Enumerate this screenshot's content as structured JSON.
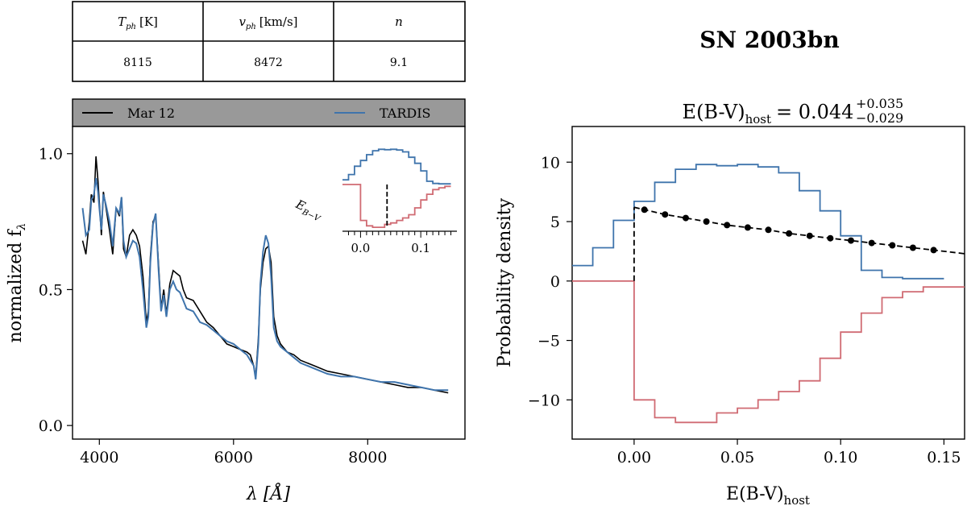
{
  "params_table": {
    "headers": [
      "T",
      "v",
      "n"
    ],
    "header_subscripts": [
      "ph",
      "ph",
      ""
    ],
    "header_units": [
      "[K]",
      "[km/s]",
      ""
    ],
    "values": [
      "8115",
      "8472",
      "9.1"
    ]
  },
  "chart_data": [
    {
      "type": "line",
      "name": "spectrum",
      "xlabel": "λ [Å]",
      "ylabel": "normalized f",
      "ylabel_subscript": "λ",
      "xlim": [
        3600,
        9450
      ],
      "ylim": [
        -0.05,
        1.1
      ],
      "xticks": [
        4000,
        6000,
        8000
      ],
      "xtick_labels": [
        "4000",
        "6000",
        "8000"
      ],
      "yticks": [
        0.0,
        0.5,
        1.0
      ],
      "ytick_labels": [
        "0.0",
        "0.5",
        "1.0"
      ],
      "legend": {
        "placement": "top-banner",
        "entries": [
          "Mar 12",
          "TARDIS"
        ]
      },
      "series": [
        {
          "name": "Mar 12",
          "color": "#000000",
          "x": [
            3750,
            3800,
            3850,
            3880,
            3920,
            3950,
            3980,
            4000,
            4030,
            4060,
            4100,
            4150,
            4200,
            4250,
            4300,
            4330,
            4360,
            4400,
            4450,
            4500,
            4550,
            4600,
            4650,
            4700,
            4730,
            4760,
            4800,
            4840,
            4880,
            4920,
            4960,
            5000,
            5050,
            5100,
            5150,
            5200,
            5250,
            5300,
            5400,
            5500,
            5600,
            5700,
            5800,
            5900,
            6000,
            6100,
            6200,
            6250,
            6300,
            6330,
            6370,
            6400,
            6440,
            6480,
            6520,
            6560,
            6600,
            6650,
            6700,
            6800,
            6900,
            7000,
            7200,
            7400,
            7600,
            7800,
            8000,
            8200,
            8400,
            8600,
            8800,
            9000,
            9200
          ],
          "y": [
            0.68,
            0.63,
            0.75,
            0.85,
            0.82,
            0.99,
            0.9,
            0.82,
            0.7,
            0.86,
            0.8,
            0.72,
            0.63,
            0.8,
            0.77,
            0.84,
            0.65,
            0.62,
            0.7,
            0.72,
            0.7,
            0.66,
            0.55,
            0.38,
            0.42,
            0.62,
            0.75,
            0.77,
            0.6,
            0.43,
            0.5,
            0.41,
            0.52,
            0.57,
            0.56,
            0.55,
            0.5,
            0.47,
            0.46,
            0.42,
            0.38,
            0.36,
            0.33,
            0.3,
            0.29,
            0.28,
            0.27,
            0.26,
            0.22,
            0.18,
            0.32,
            0.5,
            0.6,
            0.65,
            0.66,
            0.6,
            0.4,
            0.33,
            0.3,
            0.27,
            0.26,
            0.24,
            0.22,
            0.2,
            0.19,
            0.18,
            0.17,
            0.16,
            0.15,
            0.14,
            0.14,
            0.13,
            0.12
          ]
        },
        {
          "name": "TARDIS",
          "color": "#3f74ac",
          "x": [
            3750,
            3800,
            3850,
            3880,
            3920,
            3950,
            3980,
            4000,
            4030,
            4060,
            4100,
            4150,
            4200,
            4250,
            4300,
            4330,
            4360,
            4400,
            4450,
            4500,
            4550,
            4600,
            4650,
            4700,
            4730,
            4760,
            4800,
            4840,
            4880,
            4920,
            4960,
            5000,
            5050,
            5100,
            5150,
            5200,
            5250,
            5300,
            5400,
            5500,
            5600,
            5700,
            5800,
            5900,
            6000,
            6100,
            6200,
            6250,
            6300,
            6330,
            6370,
            6400,
            6440,
            6480,
            6520,
            6560,
            6600,
            6650,
            6700,
            6800,
            6900,
            7000,
            7200,
            7400,
            7600,
            7800,
            8000,
            8200,
            8400,
            8600,
            8800,
            9000,
            9200
          ],
          "y": [
            0.8,
            0.7,
            0.72,
            0.83,
            0.85,
            0.91,
            0.86,
            0.8,
            0.72,
            0.85,
            0.81,
            0.75,
            0.66,
            0.8,
            0.78,
            0.84,
            0.68,
            0.62,
            0.65,
            0.68,
            0.67,
            0.62,
            0.5,
            0.36,
            0.4,
            0.6,
            0.74,
            0.78,
            0.58,
            0.42,
            0.48,
            0.4,
            0.5,
            0.53,
            0.5,
            0.49,
            0.46,
            0.43,
            0.42,
            0.38,
            0.37,
            0.35,
            0.33,
            0.31,
            0.3,
            0.28,
            0.26,
            0.24,
            0.22,
            0.17,
            0.3,
            0.52,
            0.64,
            0.7,
            0.67,
            0.55,
            0.36,
            0.31,
            0.29,
            0.27,
            0.25,
            0.23,
            0.21,
            0.19,
            0.18,
            0.18,
            0.17,
            0.16,
            0.16,
            0.15,
            0.14,
            0.13,
            0.13
          ]
        }
      ]
    },
    {
      "type": "line",
      "name": "inset",
      "label": "E",
      "label_subscript": "B−V",
      "xlim": [
        -0.03,
        0.16
      ],
      "xticks": [
        0.0,
        0.1
      ],
      "xtick_labels": [
        "0.0",
        "0.1"
      ],
      "bin_edges": [
        -0.03,
        -0.02,
        -0.01,
        0.0,
        0.01,
        0.02,
        0.03,
        0.04,
        0.05,
        0.06,
        0.07,
        0.08,
        0.09,
        0.1,
        0.11,
        0.12,
        0.13,
        0.14,
        0.15
      ],
      "upper_values": [
        1.3,
        2.8,
        5.1,
        6.7,
        8.3,
        9.4,
        9.8,
        9.7,
        9.8,
        9.6,
        9.1,
        7.6,
        5.9,
        3.8,
        0.9,
        0.3,
        0.2,
        0.2
      ],
      "lower_values": [
        0,
        0,
        0,
        -10.0,
        -11.5,
        -11.9,
        -11.9,
        -11.1,
        -10.7,
        -10.0,
        -9.3,
        -8.4,
        -6.5,
        -4.3,
        -2.7,
        -1.4,
        -0.9,
        -0.5
      ],
      "marker_x": 0.044,
      "colors": {
        "upper": "#3f74ac",
        "lower": "#d06b73"
      }
    },
    {
      "type": "line",
      "name": "posterior",
      "title": "SN 2003bn",
      "subtitle_lhs": "E(B-V)",
      "subtitle_lhs_sub": "host",
      "subtitle_value": "= 0.044",
      "subtitle_plus": "+0.035",
      "subtitle_minus": "−0.029",
      "xlabel": "E(B-V)",
      "xlabel_subscript": "host",
      "ylabel": "Probability density",
      "xlim": [
        -0.03,
        0.16
      ],
      "ylim": [
        -13.3,
        13.0
      ],
      "xticks": [
        0.0,
        0.05,
        0.1,
        0.15
      ],
      "xtick_labels": [
        "0.00",
        "0.05",
        "0.10",
        "0.15"
      ],
      "yticks": [
        -10,
        -5,
        0,
        5,
        10
      ],
      "ytick_labels": [
        "−10",
        "−5",
        "0",
        "5",
        "10"
      ],
      "bin_edges": [
        -0.03,
        -0.02,
        -0.01,
        0.0,
        0.01,
        0.02,
        0.03,
        0.04,
        0.05,
        0.06,
        0.07,
        0.08,
        0.09,
        0.1,
        0.11,
        0.12,
        0.13,
        0.14,
        0.15
      ],
      "upper_values": [
        1.3,
        2.8,
        5.1,
        6.7,
        8.3,
        9.4,
        9.8,
        9.7,
        9.8,
        9.6,
        9.1,
        7.6,
        5.9,
        3.8,
        0.9,
        0.3,
        0.2,
        0.2
      ],
      "lower_values": [
        0,
        0,
        0,
        -10.0,
        -11.5,
        -11.9,
        -11.9,
        -11.1,
        -10.7,
        -10.0,
        -9.3,
        -8.4,
        -6.5,
        -4.3,
        -2.7,
        -1.4,
        -0.9,
        -0.5
      ],
      "prior_curve": {
        "x": [
          0.0,
          0.005,
          0.015,
          0.025,
          0.035,
          0.045,
          0.055,
          0.065,
          0.075,
          0.085,
          0.095,
          0.105,
          0.115,
          0.125,
          0.135,
          0.145,
          0.16
        ],
        "y": [
          6.2,
          6.0,
          5.6,
          5.3,
          5.0,
          4.7,
          4.5,
          4.3,
          4.0,
          3.8,
          3.6,
          3.4,
          3.2,
          3.0,
          2.8,
          2.6,
          2.3
        ],
        "dots_x": [
          0.005,
          0.015,
          0.025,
          0.035,
          0.045,
          0.055,
          0.065,
          0.075,
          0.085,
          0.095,
          0.105,
          0.115,
          0.125,
          0.135,
          0.145
        ]
      },
      "colors": {
        "upper": "#3f74ac",
        "lower": "#d06b73"
      }
    }
  ]
}
